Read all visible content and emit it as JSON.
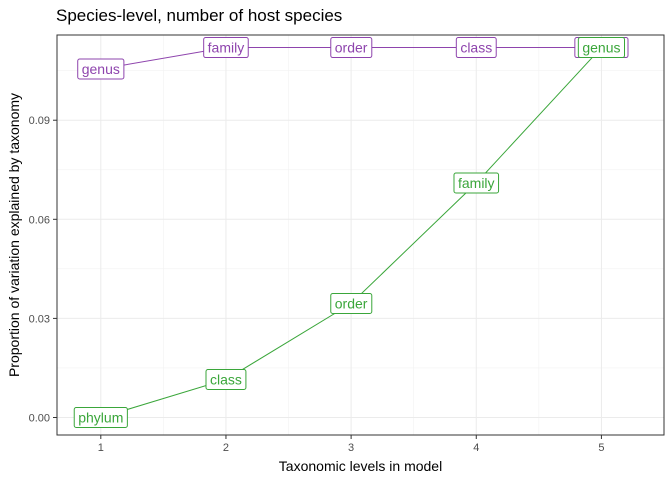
{
  "chart_data": {
    "type": "line",
    "title": "Species-level, number of host species",
    "xlabel": "Taxonomic levels in model",
    "ylabel": "Proportion of variation explained by taxonomy",
    "xlim": [
      0.65,
      5.5
    ],
    "ylim": [
      -0.0053,
      0.1158
    ],
    "x_ticks": [
      1,
      2,
      3,
      4,
      5
    ],
    "y_ticks": [
      0.0,
      0.03,
      0.06,
      0.09
    ],
    "y_tick_labels": [
      "0.00",
      "0.03",
      "0.06",
      "0.09"
    ],
    "grid": true,
    "legend": "none",
    "series": [
      {
        "color": "#8E44AD",
        "points": [
          {
            "x": 1,
            "y": 0.1055,
            "label": "genus"
          },
          {
            "x": 2,
            "y": 0.112,
            "label": "family"
          },
          {
            "x": 3,
            "y": 0.112,
            "label": "order"
          },
          {
            "x": 4,
            "y": 0.112,
            "label": "class"
          },
          {
            "x": 5,
            "y": 0.112,
            "label": "phylum"
          }
        ]
      },
      {
        "color": "#3AA63A",
        "points": [
          {
            "x": 1,
            "y": 0.0,
            "label": "phylum"
          },
          {
            "x": 2,
            "y": 0.0115,
            "label": "class"
          },
          {
            "x": 3,
            "y": 0.0345,
            "label": "order"
          },
          {
            "x": 4,
            "y": 0.071,
            "label": "family"
          },
          {
            "x": 5,
            "y": 0.112,
            "label": "genus"
          }
        ]
      }
    ]
  }
}
